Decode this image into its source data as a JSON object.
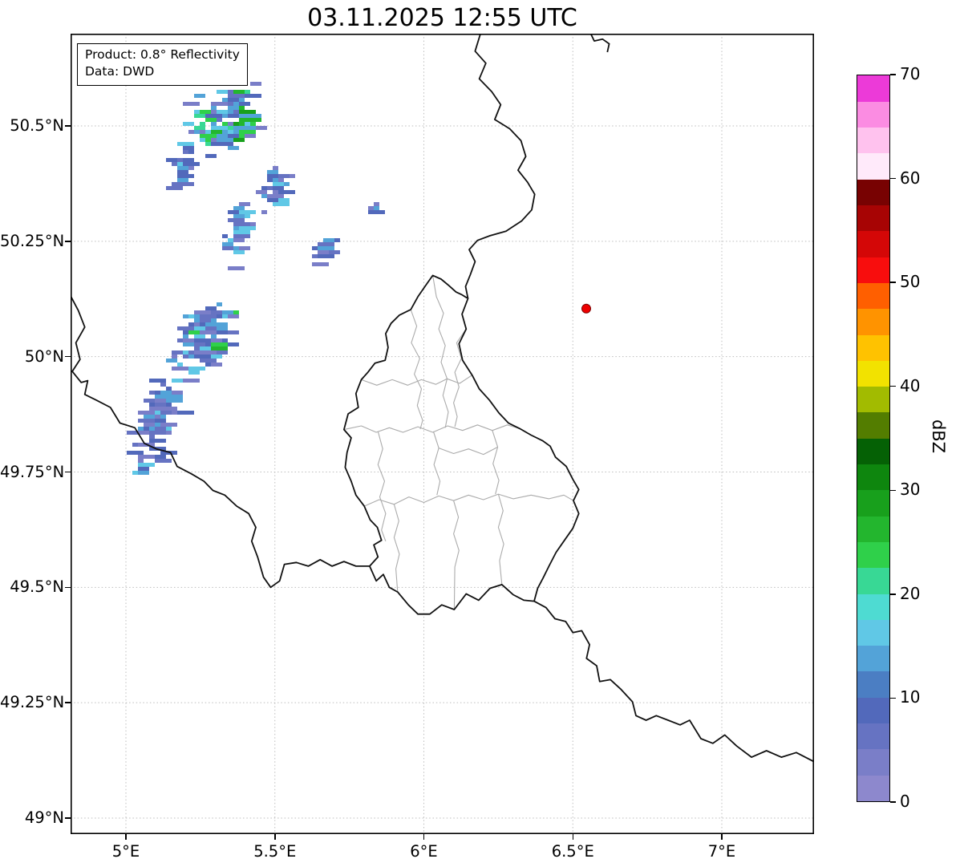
{
  "title": "03.11.2025 12:55 UTC",
  "annotation": {
    "line1": "Product: 0.8° Reflectivity",
    "line2": "Data: DWD"
  },
  "axes": {
    "x_ticks": [
      {
        "label": "5°E",
        "lon": 5.0
      },
      {
        "label": "5.5°E",
        "lon": 5.5
      },
      {
        "label": "6°E",
        "lon": 6.0
      },
      {
        "label": "6.5°E",
        "lon": 6.5
      },
      {
        "label": "7°E",
        "lon": 7.0
      }
    ],
    "y_ticks": [
      {
        "label": "50.5°N",
        "lat": 50.5
      },
      {
        "label": "50.25°N",
        "lat": 50.25
      },
      {
        "label": "50°N",
        "lat": 50.0
      },
      {
        "label": "49.75°N",
        "lat": 49.75
      },
      {
        "label": "49.5°N",
        "lat": 49.5
      },
      {
        "label": "49.25°N",
        "lat": 49.25
      },
      {
        "label": "49°N",
        "lat": 49.0
      }
    ]
  },
  "colorbar": {
    "label": "dBZ",
    "vmin": 0,
    "vmax": 70,
    "ticks": [
      0,
      10,
      20,
      30,
      40,
      50,
      60,
      70
    ],
    "colors": [
      "#8d88cd",
      "#7a7ec8",
      "#6673c2",
      "#5269bb",
      "#4b7ec3",
      "#53a3d8",
      "#60c8e6",
      "#4edbd2",
      "#38d895",
      "#2fd04a",
      "#23b62e",
      "#18a01c",
      "#0e860e",
      "#056105",
      "#537d00",
      "#a2bb00",
      "#f2e200",
      "#ffc200",
      "#ff9300",
      "#ff5f00",
      "#f80d0d",
      "#d40707",
      "#a70404",
      "#780202",
      "#ffeafa",
      "#ffc2ee",
      "#fb8ce2",
      "#ec3ad8"
    ]
  },
  "map": {
    "grid_color": "#bdbdbd",
    "country_border_color": "#111111",
    "region_border_color": "#ababab",
    "borders": {
      "be_de": [
        [
          6.19,
          50.7
        ],
        [
          6.172,
          50.662
        ],
        [
          6.208,
          50.636
        ],
        [
          6.186,
          50.602
        ],
        [
          6.228,
          50.574
        ],
        [
          6.258,
          50.546
        ],
        [
          6.238,
          50.514
        ],
        [
          6.288,
          50.494
        ],
        [
          6.326,
          50.468
        ],
        [
          6.342,
          50.434
        ],
        [
          6.316,
          50.404
        ],
        [
          6.348,
          50.378
        ],
        [
          6.372,
          50.352
        ],
        [
          6.362,
          50.318
        ],
        [
          6.328,
          50.294
        ],
        [
          6.276,
          50.272
        ],
        [
          6.222,
          50.262
        ],
        [
          6.18,
          50.252
        ],
        [
          6.152,
          50.232
        ],
        [
          6.172,
          50.206
        ],
        [
          6.156,
          50.178
        ],
        [
          6.14,
          50.152
        ],
        [
          6.148,
          50.126
        ]
      ],
      "luxembourg": [
        [
          6.148,
          50.126
        ],
        [
          6.128,
          50.092
        ],
        [
          6.142,
          50.06
        ],
        [
          6.118,
          50.028
        ],
        [
          6.13,
          49.992
        ],
        [
          6.162,
          49.96
        ],
        [
          6.186,
          49.93
        ],
        [
          6.22,
          49.906
        ],
        [
          6.252,
          49.878
        ],
        [
          6.284,
          49.856
        ],
        [
          6.322,
          49.844
        ],
        [
          6.36,
          49.83
        ],
        [
          6.398,
          49.818
        ],
        [
          6.424,
          49.806
        ],
        [
          6.442,
          49.782
        ],
        [
          6.478,
          49.762
        ],
        [
          6.5,
          49.734
        ],
        [
          6.52,
          49.712
        ],
        [
          6.502,
          49.688
        ],
        [
          6.52,
          49.66
        ],
        [
          6.5,
          49.628
        ],
        [
          6.472,
          49.602
        ],
        [
          6.444,
          49.576
        ],
        [
          6.42,
          49.546
        ],
        [
          6.4,
          49.52
        ],
        [
          6.382,
          49.498
        ],
        [
          6.37,
          49.47
        ],
        [
          6.336,
          49.472
        ],
        [
          6.3,
          49.484
        ],
        [
          6.262,
          49.506
        ],
        [
          6.222,
          49.498
        ],
        [
          6.184,
          49.472
        ],
        [
          6.142,
          49.486
        ],
        [
          6.102,
          49.452
        ],
        [
          6.06,
          49.462
        ],
        [
          6.02,
          49.442
        ],
        [
          5.98,
          49.442
        ],
        [
          5.948,
          49.462
        ],
        [
          5.912,
          49.49
        ],
        [
          5.884,
          49.5
        ],
        [
          5.864,
          49.528
        ],
        [
          5.84,
          49.514
        ],
        [
          5.818,
          49.546
        ],
        [
          5.846,
          49.566
        ],
        [
          5.832,
          49.592
        ],
        [
          5.858,
          49.602
        ],
        [
          5.844,
          49.63
        ],
        [
          5.82,
          49.646
        ],
        [
          5.8,
          49.676
        ],
        [
          5.772,
          49.7
        ],
        [
          5.756,
          49.73
        ],
        [
          5.736,
          49.76
        ],
        [
          5.742,
          49.792
        ],
        [
          5.756,
          49.824
        ],
        [
          5.732,
          49.842
        ],
        [
          5.746,
          49.876
        ],
        [
          5.78,
          49.89
        ],
        [
          5.772,
          49.92
        ],
        [
          5.79,
          49.95
        ],
        [
          5.812,
          49.966
        ],
        [
          5.836,
          49.986
        ],
        [
          5.87,
          49.992
        ],
        [
          5.88,
          50.02
        ],
        [
          5.872,
          50.05
        ],
        [
          5.89,
          50.072
        ],
        [
          5.918,
          50.09
        ],
        [
          5.956,
          50.102
        ],
        [
          5.98,
          50.13
        ],
        [
          6.008,
          50.156
        ],
        [
          6.03,
          50.176
        ],
        [
          6.058,
          50.168
        ],
        [
          6.084,
          50.154
        ],
        [
          6.108,
          50.14
        ],
        [
          6.128,
          50.134
        ],
        [
          6.148,
          50.126
        ]
      ],
      "fr_be": [
        [
          4.814,
          50.132
        ],
        [
          4.84,
          50.1
        ],
        [
          4.862,
          50.064
        ],
        [
          4.832,
          50.03
        ],
        [
          4.846,
          49.994
        ],
        [
          4.82,
          49.968
        ],
        [
          4.85,
          49.944
        ],
        [
          4.872,
          49.948
        ],
        [
          4.862,
          49.918
        ],
        [
          4.9,
          49.906
        ],
        [
          4.948,
          49.89
        ],
        [
          4.98,
          49.856
        ],
        [
          5.03,
          49.846
        ],
        [
          5.062,
          49.812
        ],
        [
          5.102,
          49.8
        ],
        [
          5.15,
          49.792
        ],
        [
          5.172,
          49.762
        ],
        [
          5.22,
          49.746
        ],
        [
          5.262,
          49.73
        ],
        [
          5.292,
          49.71
        ],
        [
          5.332,
          49.7
        ],
        [
          5.372,
          49.676
        ],
        [
          5.412,
          49.66
        ],
        [
          5.436,
          49.63
        ],
        [
          5.422,
          49.6
        ],
        [
          5.442,
          49.566
        ],
        [
          5.462,
          49.522
        ],
        [
          5.486,
          49.5
        ],
        [
          5.516,
          49.514
        ],
        [
          5.532,
          49.55
        ],
        [
          5.572,
          49.554
        ],
        [
          5.612,
          49.546
        ],
        [
          5.652,
          49.56
        ],
        [
          5.692,
          49.546
        ],
        [
          5.732,
          49.556
        ],
        [
          5.772,
          49.546
        ],
        [
          5.818,
          49.546
        ]
      ],
      "fr_de": [
        [
          6.37,
          49.47
        ],
        [
          6.41,
          49.456
        ],
        [
          6.44,
          49.432
        ],
        [
          6.476,
          49.426
        ],
        [
          6.5,
          49.402
        ],
        [
          6.53,
          49.406
        ],
        [
          6.556,
          49.376
        ],
        [
          6.546,
          49.346
        ],
        [
          6.58,
          49.33
        ],
        [
          6.59,
          49.296
        ],
        [
          6.626,
          49.3
        ],
        [
          6.66,
          49.28
        ],
        [
          6.7,
          49.252
        ],
        [
          6.712,
          49.222
        ],
        [
          6.746,
          49.212
        ],
        [
          6.78,
          49.222
        ],
        [
          6.82,
          49.212
        ],
        [
          6.86,
          49.202
        ],
        [
          6.892,
          49.212
        ],
        [
          6.93,
          49.172
        ],
        [
          6.97,
          49.162
        ],
        [
          7.01,
          49.18
        ],
        [
          7.05,
          49.156
        ],
        [
          7.1,
          49.132
        ],
        [
          7.15,
          49.146
        ],
        [
          7.2,
          49.132
        ],
        [
          7.25,
          49.142
        ],
        [
          7.31,
          49.122
        ]
      ],
      "fragment_ne": [
        [
          6.56,
          50.7
        ],
        [
          6.572,
          50.684
        ],
        [
          6.6,
          50.688
        ],
        [
          6.622,
          50.678
        ],
        [
          6.616,
          50.66
        ]
      ]
    },
    "regions": [
      [
        [
          5.732,
          49.842
        ],
        [
          5.79,
          49.85
        ],
        [
          5.84,
          49.836
        ],
        [
          5.884,
          49.846
        ],
        [
          5.93,
          49.836
        ],
        [
          5.98,
          49.848
        ],
        [
          6.03,
          49.836
        ],
        [
          6.08,
          49.85
        ],
        [
          6.13,
          49.84
        ],
        [
          6.18,
          49.852
        ],
        [
          6.23,
          49.84
        ],
        [
          6.28,
          49.852
        ],
        [
          6.322,
          49.844
        ]
      ],
      [
        [
          5.956,
          50.102
        ],
        [
          5.976,
          50.066
        ],
        [
          5.958,
          50.03
        ],
        [
          5.986,
          49.996
        ],
        [
          5.968,
          49.962
        ],
        [
          5.992,
          49.93
        ],
        [
          5.978,
          49.894
        ],
        [
          5.996,
          49.862
        ],
        [
          5.988,
          49.843
        ]
      ],
      [
        [
          6.03,
          50.176
        ],
        [
          6.042,
          50.13
        ],
        [
          6.066,
          50.094
        ],
        [
          6.05,
          50.06
        ],
        [
          6.072,
          50.024
        ],
        [
          6.058,
          49.988
        ],
        [
          6.078,
          49.952
        ],
        [
          6.064,
          49.916
        ],
        [
          6.082,
          49.88
        ],
        [
          6.072,
          49.846
        ]
      ],
      [
        [
          6.142,
          50.06
        ],
        [
          6.11,
          50.03
        ],
        [
          6.126,
          49.996
        ],
        [
          6.104,
          49.966
        ],
        [
          6.118,
          49.934
        ],
        [
          6.1,
          49.9
        ],
        [
          6.112,
          49.87
        ],
        [
          6.104,
          49.848
        ]
      ],
      [
        [
          5.846,
          49.838
        ],
        [
          5.862,
          49.8
        ],
        [
          5.846,
          49.766
        ],
        [
          5.868,
          49.73
        ],
        [
          5.852,
          49.696
        ],
        [
          5.872,
          49.66
        ],
        [
          5.858,
          49.624
        ],
        [
          5.872,
          49.6
        ]
      ],
      [
        [
          6.032,
          49.838
        ],
        [
          6.05,
          49.802
        ],
        [
          6.034,
          49.766
        ],
        [
          6.054,
          49.73
        ],
        [
          6.044,
          49.7
        ]
      ],
      [
        [
          6.23,
          49.84
        ],
        [
          6.248,
          49.804
        ],
        [
          6.232,
          49.768
        ],
        [
          6.252,
          49.732
        ],
        [
          6.24,
          49.702
        ]
      ],
      [
        [
          5.8,
          49.676
        ],
        [
          5.85,
          49.69
        ],
        [
          5.9,
          49.68
        ],
        [
          5.95,
          49.696
        ],
        [
          6.0,
          49.684
        ],
        [
          6.05,
          49.698
        ],
        [
          6.1,
          49.688
        ],
        [
          6.15,
          49.7
        ],
        [
          6.2,
          49.69
        ],
        [
          6.25,
          49.702
        ],
        [
          6.3,
          49.692
        ],
        [
          6.36,
          49.7
        ],
        [
          6.42,
          49.692
        ],
        [
          6.47,
          49.7
        ],
        [
          6.502,
          49.688
        ]
      ],
      [
        [
          5.9,
          49.68
        ],
        [
          5.916,
          49.644
        ],
        [
          5.9,
          49.608
        ],
        [
          5.918,
          49.572
        ],
        [
          5.906,
          49.54
        ],
        [
          5.912,
          49.49
        ]
      ],
      [
        [
          6.1,
          49.688
        ],
        [
          6.116,
          49.652
        ],
        [
          6.1,
          49.616
        ],
        [
          6.118,
          49.58
        ],
        [
          6.104,
          49.544
        ],
        [
          6.102,
          49.452
        ]
      ],
      [
        [
          6.25,
          49.702
        ],
        [
          6.266,
          49.666
        ],
        [
          6.25,
          49.63
        ],
        [
          6.268,
          49.594
        ],
        [
          6.254,
          49.558
        ],
        [
          6.262,
          49.506
        ]
      ],
      [
        [
          6.05,
          49.802
        ],
        [
          6.1,
          49.79
        ],
        [
          6.15,
          49.8
        ],
        [
          6.2,
          49.788
        ],
        [
          6.248,
          49.804
        ]
      ],
      [
        [
          5.79,
          49.95
        ],
        [
          5.842,
          49.938
        ],
        [
          5.894,
          49.95
        ],
        [
          5.946,
          49.938
        ],
        [
          5.992,
          49.95
        ],
        [
          6.04,
          49.94
        ],
        [
          6.078,
          49.952
        ],
        [
          6.12,
          49.942
        ],
        [
          6.162,
          49.96
        ]
      ]
    ]
  },
  "radar": {
    "marker": {
      "lon": 6.545,
      "lat": 50.104,
      "color": "#ee0000"
    },
    "clusters": [
      {
        "lon": 5.31,
        "lat": 50.512,
        "dlon": 0.145,
        "dlat": 0.095,
        "shear": 0.03,
        "n": 110,
        "w_green": 0.2,
        "w_cyan": 0.33,
        "seed": 11
      },
      {
        "lon": 5.374,
        "lat": 50.503,
        "dlon": 0.03,
        "dlat": 0.045,
        "shear": 0.02,
        "n": 30,
        "w_green": 0.75,
        "w_cyan": 0.25,
        "green_hi": true,
        "seed": 21
      },
      {
        "lon": 5.175,
        "lat": 50.417,
        "dlon": 0.05,
        "dlat": 0.065,
        "shear": 0.02,
        "n": 26,
        "w_green": 0,
        "w_cyan": 0.3,
        "seed": 31
      },
      {
        "lon": 5.487,
        "lat": 50.377,
        "dlon": 0.055,
        "dlat": 0.075,
        "shear": 0.03,
        "n": 40,
        "w_green": 0,
        "w_cyan": 0.28,
        "seed": 41
      },
      {
        "lon": 5.363,
        "lat": 50.272,
        "dlon": 0.055,
        "dlat": 0.085,
        "shear": 0.03,
        "n": 46,
        "w_green": 0,
        "w_cyan": 0.3,
        "seed": 51
      },
      {
        "lon": 5.649,
        "lat": 50.234,
        "dlon": 0.032,
        "dlat": 0.055,
        "shear": 0.02,
        "n": 22,
        "w_green": 0,
        "w_cyan": 0.2,
        "seed": 61
      },
      {
        "lon": 5.821,
        "lat": 50.321,
        "dlon": 0.018,
        "dlat": 0.02,
        "shear": 0.01,
        "n": 7,
        "w_green": 0,
        "w_cyan": 0.3,
        "seed": 71
      },
      {
        "lon": 5.245,
        "lat": 50.043,
        "dlon": 0.125,
        "dlat": 0.105,
        "shear": 0.06,
        "n": 115,
        "w_green": 0.08,
        "w_cyan": 0.31,
        "seed": 81
      },
      {
        "lon": 5.089,
        "lat": 49.873,
        "dlon": 0.095,
        "dlat": 0.115,
        "shear": 0.05,
        "n": 95,
        "w_green": 0,
        "w_cyan": 0.32,
        "seed": 91
      },
      {
        "lon": 5.04,
        "lat": 49.765,
        "dlon": 0.028,
        "dlat": 0.028,
        "shear": 0.01,
        "n": 12,
        "w_green": 0,
        "w_cyan": 0.2,
        "seed": 101
      }
    ]
  },
  "chart_data": {
    "type": "heatmap",
    "title": "03.11.2025 12:55 UTC",
    "product": "0.8° Reflectivity",
    "source": "DWD",
    "units": "dBZ",
    "extent": {
      "lon_min": 4.81,
      "lon_max": 7.31,
      "lat_min": 48.97,
      "lat_max": 50.7
    },
    "colorbar_ticks": [
      0,
      10,
      20,
      30,
      40,
      50,
      60,
      70
    ],
    "radar_site_marker": {
      "lon": 6.545,
      "lat": 50.104
    },
    "summary": "Scattered light NE–SW oriented precipitation bands (mostly 5–25 dBZ, isolated ~30 dBZ cores) northwest of Luxembourg; no echoes over Luxembourg itself"
  }
}
